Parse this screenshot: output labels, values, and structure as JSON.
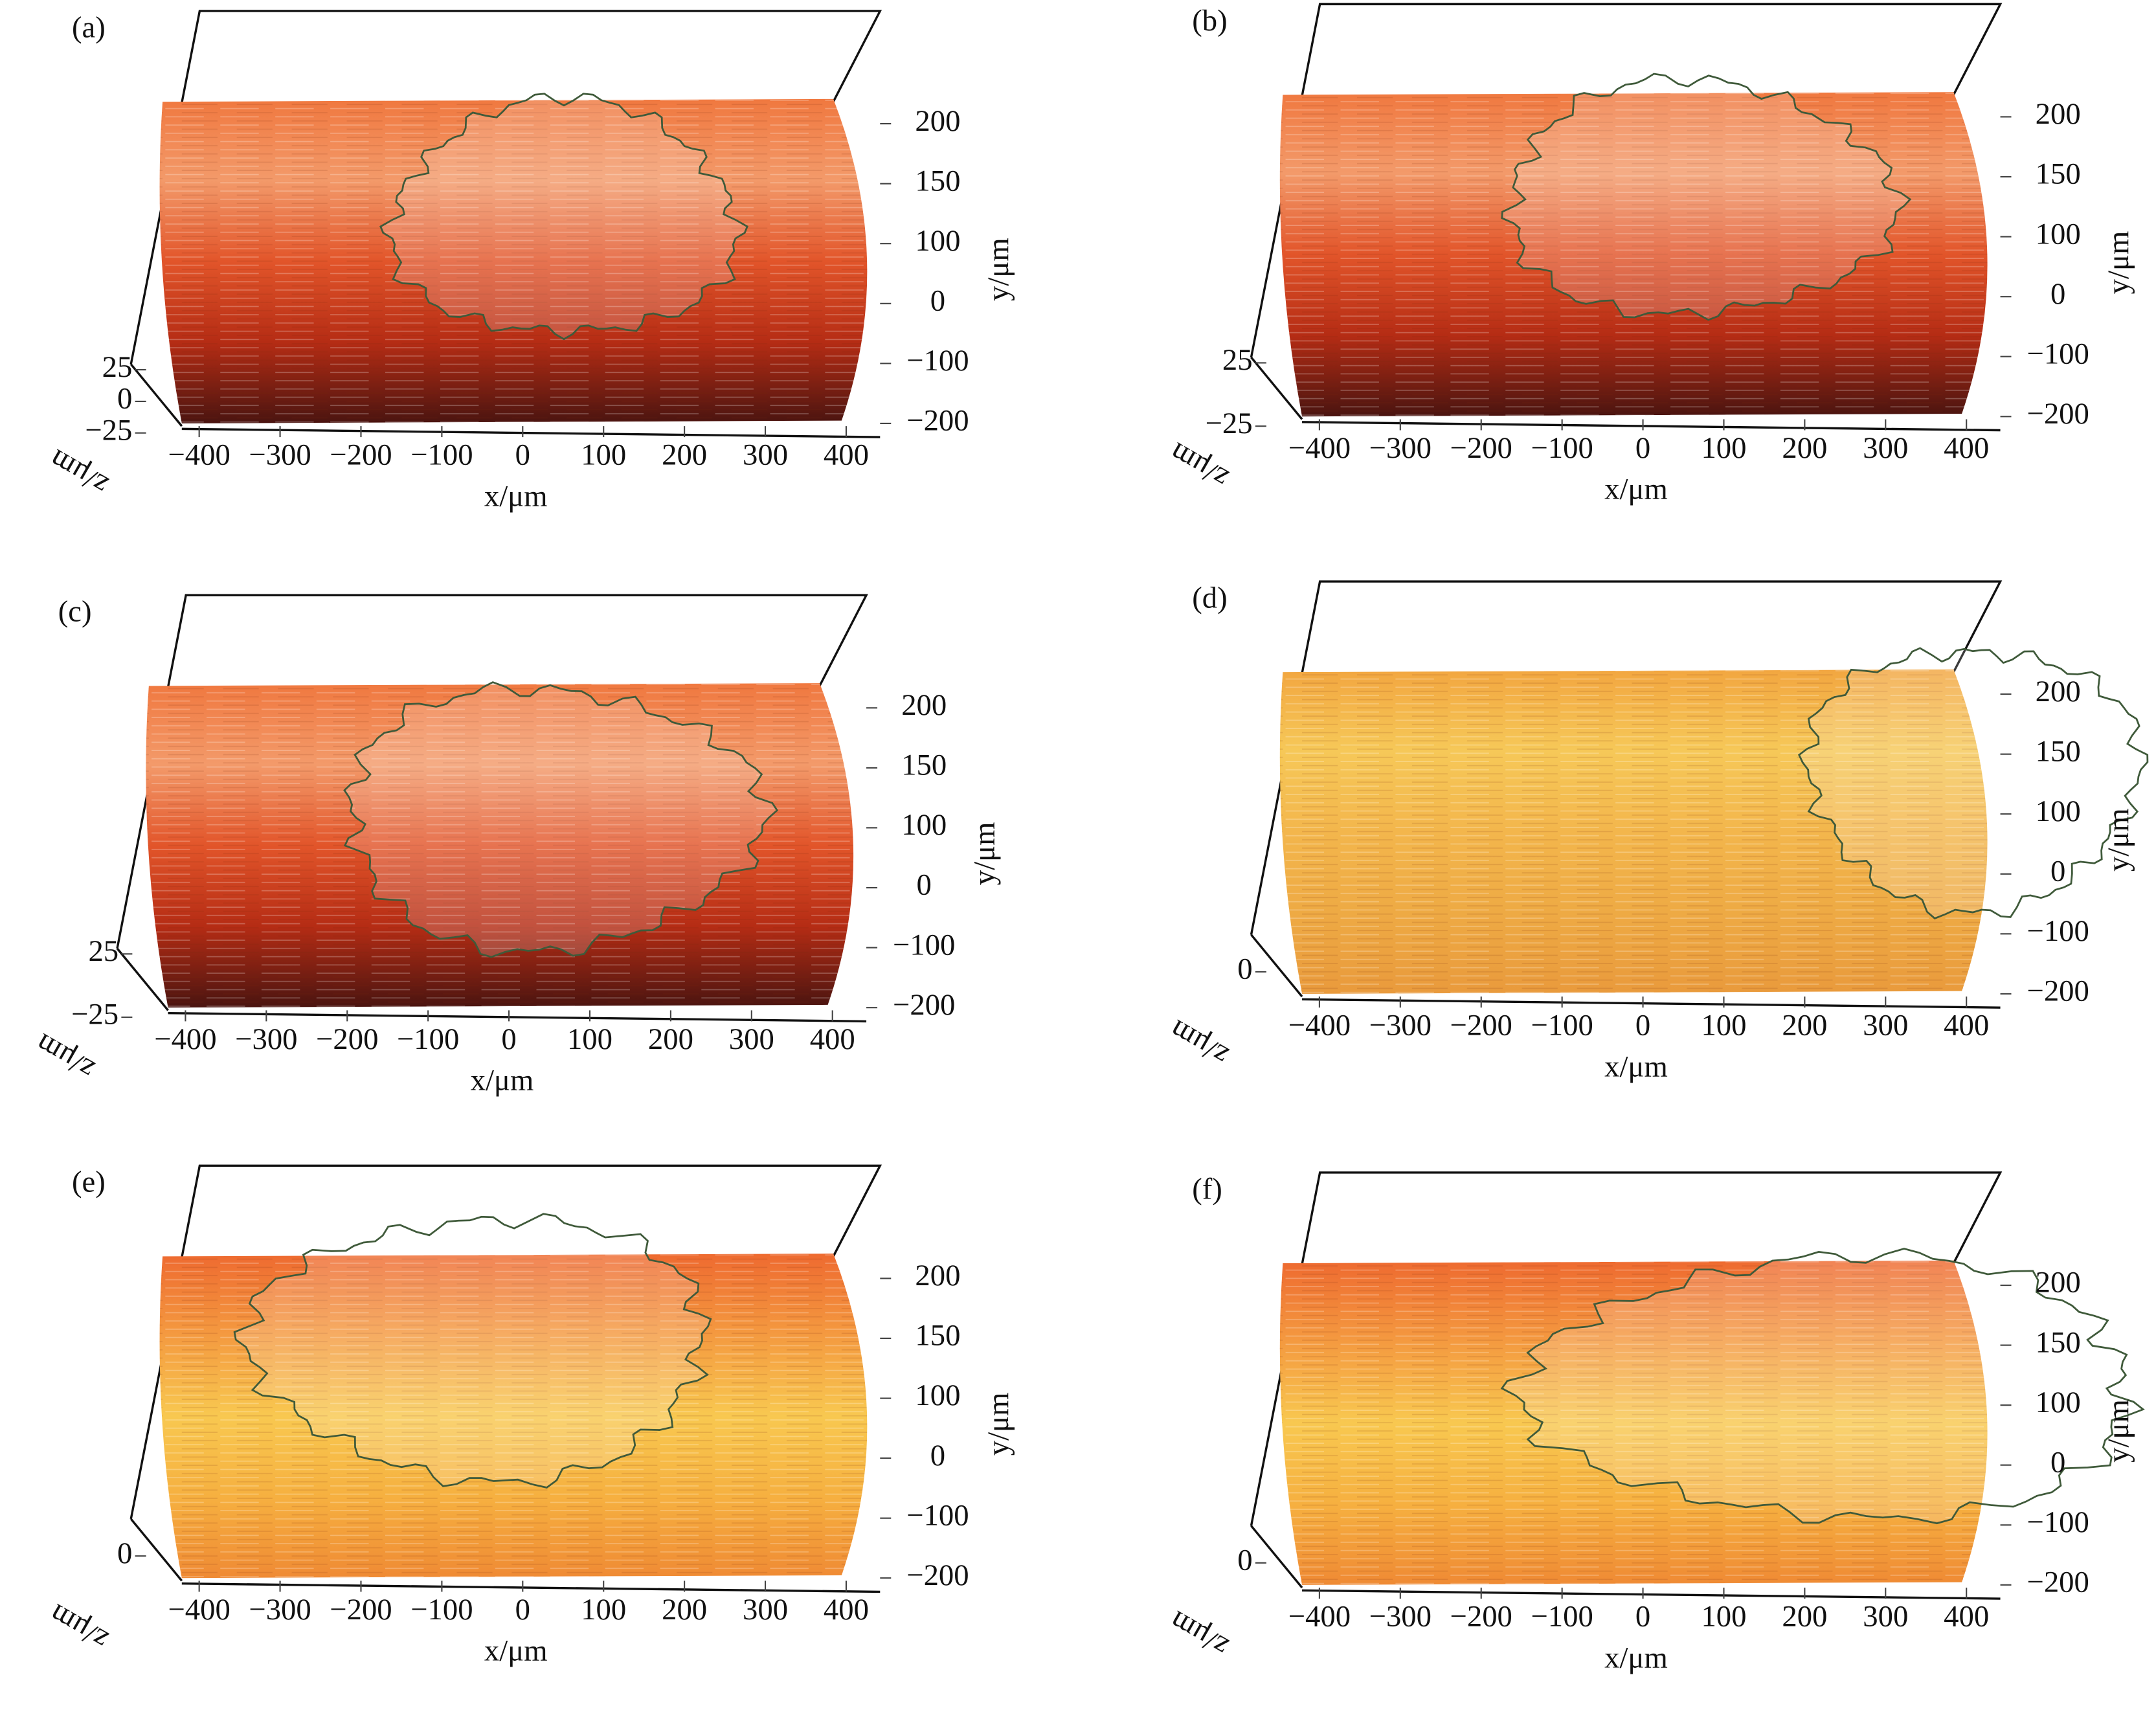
{
  "chart_data": [
    {
      "type": "surface3d",
      "label": "(a)",
      "xlabel": "x/μm",
      "ylabel": "y/μm",
      "zlabel": "z/μm",
      "colors": [
        "#f0783f",
        "#f39a6a",
        "#e2552a",
        "#b52c14",
        "#4a1410"
      ],
      "xlim": [
        -430,
        430
      ],
      "ylim": [
        -200,
        200
      ],
      "zlim": [
        -25,
        25
      ],
      "xticks": [
        {
          "value": -400,
          "label": "−400"
        },
        {
          "value": -300,
          "label": "−300"
        },
        {
          "value": -200,
          "label": "−200"
        },
        {
          "value": -100,
          "label": "−100"
        },
        0,
        100,
        200,
        300,
        400
      ],
      "yticks": [
        200,
        150,
        100,
        0,
        {
          "value": -100,
          "label": "−100"
        },
        {
          "value": -200,
          "label": "−200"
        }
      ],
      "zticks": [
        25,
        0,
        {
          "value": -25,
          "label": "−25"
        }
      ]
    },
    {
      "type": "surface3d",
      "label": "(b)",
      "xlabel": "x/μm",
      "ylabel": "y/μm",
      "zlabel": "z/μm",
      "colors": [
        "#f0783f",
        "#f39a6a",
        "#e2552a",
        "#b52c14",
        "#4a1410"
      ],
      "xlim": [
        -430,
        430
      ],
      "ylim": [
        -200,
        200
      ],
      "zlim": [
        -25,
        25
      ],
      "xticks": [
        {
          "value": -400,
          "label": "−400"
        },
        {
          "value": -300,
          "label": "−300"
        },
        {
          "value": -200,
          "label": "−200"
        },
        {
          "value": -100,
          "label": "−100"
        },
        0,
        100,
        200,
        300,
        400
      ],
      "yticks": [
        200,
        150,
        100,
        0,
        {
          "value": -100,
          "label": "−100"
        },
        {
          "value": -200,
          "label": "−200"
        }
      ],
      "zticks": [
        25,
        {
          "value": -25,
          "label": "−25"
        }
      ]
    },
    {
      "type": "surface3d",
      "label": "(c)",
      "xlabel": "x/μm",
      "ylabel": "y/μm",
      "zlabel": "z/μm",
      "colors": [
        "#f0783f",
        "#f39a6a",
        "#e2552a",
        "#b52c14",
        "#4a1410"
      ],
      "xlim": [
        -430,
        430
      ],
      "ylim": [
        -200,
        200
      ],
      "zlim": [
        -25,
        25
      ],
      "xticks": [
        {
          "value": -400,
          "label": "−400"
        },
        {
          "value": -300,
          "label": "−300"
        },
        {
          "value": -200,
          "label": "−200"
        },
        {
          "value": -100,
          "label": "−100"
        },
        0,
        100,
        200,
        300,
        400
      ],
      "yticks": [
        200,
        150,
        100,
        0,
        {
          "value": -100,
          "label": "−100"
        },
        {
          "value": -200,
          "label": "−200"
        }
      ],
      "zticks": [
        25,
        {
          "value": -25,
          "label": "−25"
        }
      ]
    },
    {
      "type": "surface3d",
      "label": "(d)",
      "xlabel": "x/μm",
      "ylabel": "y/μm",
      "zlabel": "z/μm",
      "colors": [
        "#f2a640",
        "#f6c858",
        "#f3b64c",
        "#eeaa44",
        "#e99a3c"
      ],
      "xlim": [
        -430,
        430
      ],
      "ylim": [
        -200,
        200
      ],
      "zlim": [
        -25,
        25
      ],
      "xticks": [
        {
          "value": -400,
          "label": "−400"
        },
        {
          "value": -300,
          "label": "−300"
        },
        {
          "value": -200,
          "label": "−200"
        },
        {
          "value": -100,
          "label": "−100"
        },
        0,
        100,
        200,
        300,
        400
      ],
      "yticks": [
        200,
        150,
        100,
        0,
        {
          "value": -100,
          "label": "−100"
        },
        {
          "value": -200,
          "label": "−200"
        }
      ],
      "zticks": [
        0
      ]
    },
    {
      "type": "surface3d",
      "label": "(e)",
      "xlabel": "x/μm",
      "ylabel": "y/μm",
      "zlabel": "z/μm",
      "colors": [
        "#ee6a30",
        "#f49a40",
        "#f8c850",
        "#f6b040",
        "#ef8a34"
      ],
      "xlim": [
        -430,
        430
      ],
      "ylim": [
        -200,
        200
      ],
      "zlim": [
        -25,
        25
      ],
      "xticks": [
        {
          "value": -400,
          "label": "−400"
        },
        {
          "value": -300,
          "label": "−300"
        },
        {
          "value": -200,
          "label": "−200"
        },
        {
          "value": -100,
          "label": "−100"
        },
        0,
        100,
        200,
        300,
        400
      ],
      "yticks": [
        200,
        150,
        100,
        0,
        {
          "value": -100,
          "label": "−100"
        },
        {
          "value": -200,
          "label": "−200"
        }
      ],
      "zticks": [
        0
      ]
    },
    {
      "type": "surface3d",
      "label": "(f)",
      "xlabel": "x/μm",
      "ylabel": "y/μm",
      "zlabel": "z/μm",
      "colors": [
        "#ee6a30",
        "#f49a40",
        "#f8c850",
        "#f6b040",
        "#ef8a34"
      ],
      "xlim": [
        -430,
        430
      ],
      "ylim": [
        -200,
        200
      ],
      "zlim": [
        -25,
        25
      ],
      "xticks": [
        {
          "value": -400,
          "label": "−400"
        },
        {
          "value": -300,
          "label": "−300"
        },
        {
          "value": -200,
          "label": "−200"
        },
        {
          "value": -100,
          "label": "−100"
        },
        0,
        100,
        200,
        300,
        400
      ],
      "yticks": [
        200,
        150,
        100,
        0,
        {
          "value": -100,
          "label": "−100"
        },
        {
          "value": -200,
          "label": "−200"
        }
      ],
      "zticks": [
        0
      ]
    }
  ]
}
